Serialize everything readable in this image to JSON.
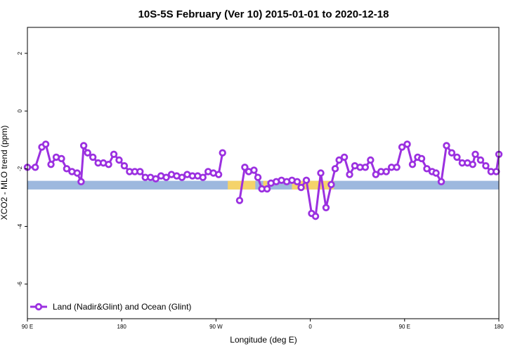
{
  "chart_data": {
    "type": "line",
    "title": "10S-5S February (Ver 10)   2015-01-01 to 2020-12-18",
    "xlabel": "Longitude (deg E)",
    "ylabel": "XCO2 - MLO trend (ppm)",
    "xlim": [
      90,
      450
    ],
    "ylim": [
      -7.2,
      2.9
    ],
    "x_ticks": [
      {
        "value": 90,
        "label": "90 E"
      },
      {
        "value": 162,
        "label": "180"
      },
      {
        "value": 234,
        "label": "90 W"
      },
      {
        "value": 306,
        "label": "0"
      },
      {
        "value": 378,
        "label": "90 E"
      },
      {
        "value": 450,
        "label": "180"
      }
    ],
    "y_ticks": [
      {
        "value": 2,
        "label": "2"
      },
      {
        "value": 0,
        "label": "0"
      },
      {
        "value": -2,
        "label": "-2"
      },
      {
        "value": -4,
        "label": "-4"
      },
      {
        "value": -6,
        "label": "-6"
      }
    ],
    "grid": false,
    "legend_position": "bottom-left",
    "surface_band": {
      "y_range": [
        -2.72,
        -2.42
      ],
      "ocean_color": "#9DB8DE",
      "land_color": "#F5D36A",
      "land_segments": [
        [
          243,
          264
        ],
        [
          270,
          273
        ],
        [
          292,
          324
        ]
      ]
    },
    "series": [
      {
        "name": "Land (Nadir&Glint) and Ocean (Glint)",
        "color": "#9B30E0",
        "segments": [
          {
            "x": [
              90,
              96,
              101,
              104,
              108,
              112,
              116,
              120,
              124,
              128,
              131,
              133,
              136,
              140,
              144,
              148,
              152,
              156,
              160,
              164,
              168,
              172,
              176,
              180,
              184,
              188,
              192,
              196,
              200,
              204,
              208,
              212,
              216,
              220,
              224,
              228,
              232,
              236,
              239
            ],
            "y": [
              -1.95,
              -1.95,
              -1.25,
              -1.15,
              -1.85,
              -1.6,
              -1.65,
              -2.0,
              -2.1,
              -2.15,
              -2.45,
              -1.2,
              -1.45,
              -1.6,
              -1.8,
              -1.8,
              -1.85,
              -1.5,
              -1.7,
              -1.9,
              -2.1,
              -2.1,
              -2.1,
              -2.3,
              -2.3,
              -2.35,
              -2.25,
              -2.3,
              -2.2,
              -2.25,
              -2.3,
              -2.2,
              -2.25,
              -2.25,
              -2.3,
              -2.1,
              -2.15,
              -2.2,
              -1.45
            ]
          },
          {
            "x": [
              252,
              256,
              259,
              263,
              266,
              269,
              273,
              276,
              280,
              284,
              288,
              292,
              296,
              299,
              303,
              307,
              310,
              314,
              318,
              322,
              325,
              328,
              332,
              336,
              340,
              344,
              348,
              352,
              356,
              360,
              364,
              368,
              372,
              376,
              380,
              384,
              388,
              391,
              395,
              399,
              402,
              406,
              410,
              414,
              418,
              422,
              426,
              430,
              432,
              436,
              440,
              444,
              448,
              450
            ],
            "y": [
              -3.1,
              -1.95,
              -2.1,
              -2.05,
              -2.3,
              -2.7,
              -2.7,
              -2.5,
              -2.45,
              -2.4,
              -2.45,
              -2.4,
              -2.45,
              -2.65,
              -2.4,
              -3.55,
              -3.65,
              -2.15,
              -3.35,
              -2.55,
              -2.0,
              -1.7,
              -1.6,
              -2.2,
              -1.9,
              -1.95,
              -1.95,
              -1.7,
              -2.2,
              -2.1,
              -2.1,
              -1.95,
              -1.95,
              -1.25,
              -1.15,
              -1.85,
              -1.6,
              -1.65,
              -2.0,
              -2.1,
              -2.15,
              -2.45,
              -1.2,
              -1.45,
              -1.6,
              -1.8,
              -1.8,
              -1.85,
              -1.5,
              -1.7,
              -1.9,
              -2.1,
              -2.1,
              -1.5
            ]
          }
        ]
      }
    ]
  }
}
